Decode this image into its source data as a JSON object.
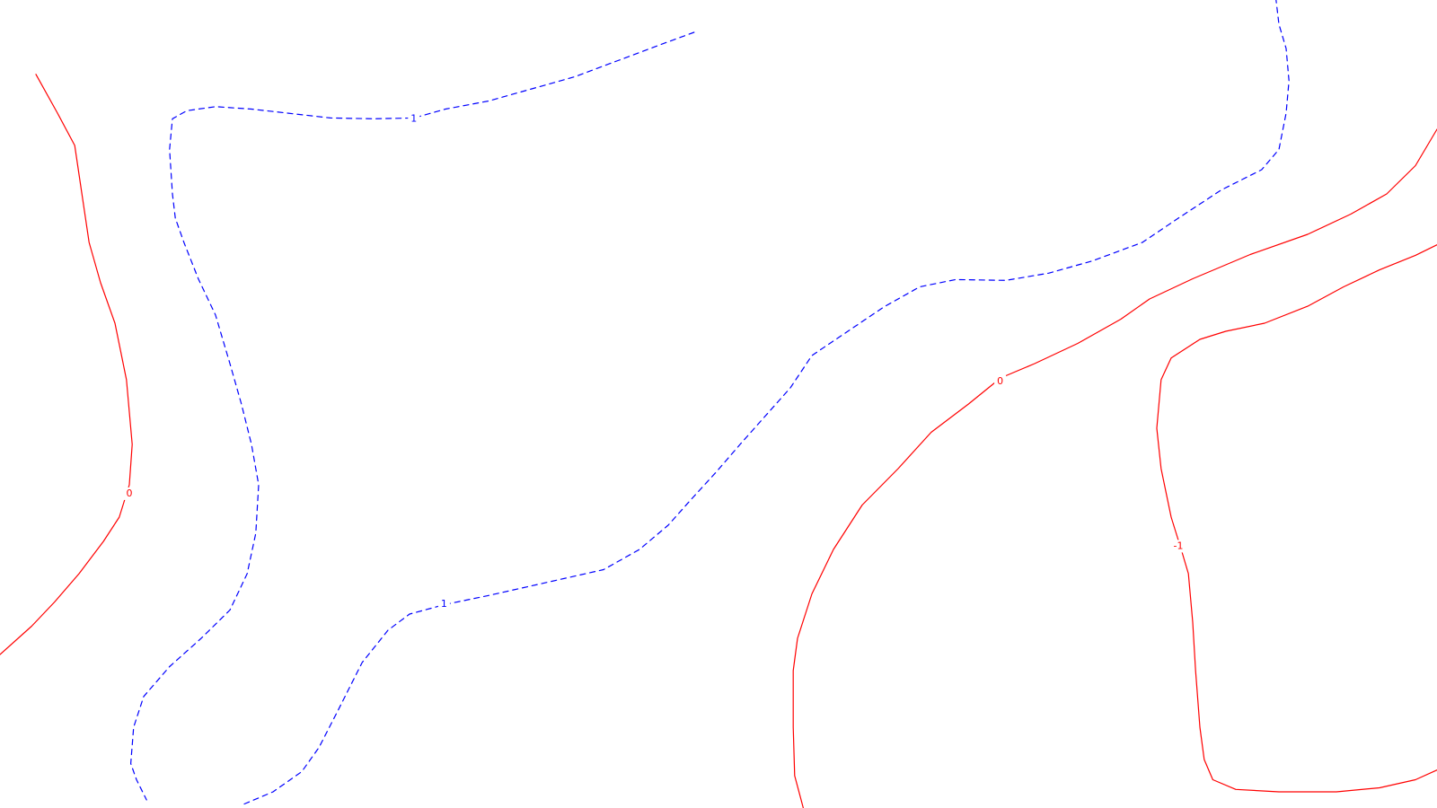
{
  "chart_data": {
    "type": "contour",
    "title": "",
    "xlabel": "",
    "ylabel": "",
    "grid": false,
    "series": [
      {
        "label": "0",
        "color": "#ff0000",
        "style": "solid",
        "points": [
          [
            0.025,
            0.092
          ],
          [
            0.04,
            0.14
          ],
          [
            0.052,
            0.18
          ],
          [
            0.062,
            0.3
          ],
          [
            0.07,
            0.35
          ],
          [
            0.08,
            0.4
          ],
          [
            0.088,
            0.47
          ],
          [
            0.092,
            0.55
          ],
          [
            0.09,
            0.6
          ],
          [
            0.083,
            0.64
          ],
          [
            0.072,
            0.67
          ],
          [
            0.055,
            0.71
          ],
          [
            0.038,
            0.745
          ],
          [
            0.022,
            0.775
          ],
          [
            0.0,
            0.81
          ]
        ]
      },
      {
        "label": "0",
        "color": "#ff0000",
        "style": "solid",
        "points": [
          [
            0.559,
            1.0
          ],
          [
            0.553,
            0.96
          ],
          [
            0.552,
            0.9
          ],
          [
            0.552,
            0.83
          ],
          [
            0.555,
            0.79
          ],
          [
            0.565,
            0.735
          ],
          [
            0.58,
            0.68
          ],
          [
            0.6,
            0.625
          ],
          [
            0.625,
            0.58
          ],
          [
            0.648,
            0.535
          ],
          [
            0.674,
            0.5
          ],
          [
            0.692,
            0.474
          ],
          [
            0.7,
            0.465
          ],
          [
            0.72,
            0.45
          ],
          [
            0.75,
            0.425
          ],
          [
            0.78,
            0.395
          ],
          [
            0.8,
            0.37
          ],
          [
            0.83,
            0.345
          ],
          [
            0.87,
            0.315
          ],
          [
            0.91,
            0.29
          ],
          [
            0.94,
            0.265
          ],
          [
            0.965,
            0.24
          ],
          [
            0.985,
            0.205
          ],
          [
            1.0,
            0.16
          ]
        ]
      },
      {
        "label": "-1",
        "color": "#ff0000",
        "style": "solid",
        "points": [
          [
            1.0,
            0.303
          ],
          [
            0.985,
            0.316
          ],
          [
            0.96,
            0.334
          ],
          [
            0.935,
            0.355
          ],
          [
            0.91,
            0.379
          ],
          [
            0.88,
            0.4
          ],
          [
            0.853,
            0.41
          ],
          [
            0.835,
            0.42
          ],
          [
            0.815,
            0.443
          ],
          [
            0.808,
            0.47
          ],
          [
            0.805,
            0.53
          ],
          [
            0.808,
            0.58
          ],
          [
            0.815,
            0.64
          ],
          [
            0.822,
            0.68
          ],
          [
            0.827,
            0.71
          ],
          [
            0.83,
            0.77
          ],
          [
            0.832,
            0.83
          ],
          [
            0.835,
            0.9
          ],
          [
            0.838,
            0.94
          ],
          [
            0.844,
            0.965
          ],
          [
            0.86,
            0.977
          ],
          [
            0.89,
            0.98
          ],
          [
            0.93,
            0.98
          ],
          [
            0.96,
            0.975
          ],
          [
            0.985,
            0.965
          ],
          [
            1.0,
            0.953
          ]
        ]
      },
      {
        "label": "1",
        "color": "#0000ff",
        "style": "dashed",
        "points": [
          [
            0.483,
            0.04
          ],
          [
            0.46,
            0.055
          ],
          [
            0.43,
            0.075
          ],
          [
            0.4,
            0.095
          ],
          [
            0.37,
            0.11
          ],
          [
            0.34,
            0.125
          ],
          [
            0.31,
            0.135
          ],
          [
            0.288,
            0.146
          ],
          [
            0.26,
            0.147
          ],
          [
            0.23,
            0.146
          ],
          [
            0.2,
            0.14
          ],
          [
            0.175,
            0.135
          ],
          [
            0.15,
            0.132
          ],
          [
            0.13,
            0.137
          ],
          [
            0.12,
            0.147
          ],
          [
            0.118,
            0.185
          ],
          [
            0.12,
            0.24
          ],
          [
            0.122,
            0.27
          ],
          [
            0.128,
            0.3
          ],
          [
            0.138,
            0.345
          ],
          [
            0.15,
            0.39
          ],
          [
            0.16,
            0.45
          ],
          [
            0.168,
            0.5
          ],
          [
            0.175,
            0.55
          ],
          [
            0.18,
            0.6
          ],
          [
            0.178,
            0.66
          ],
          [
            0.172,
            0.71
          ],
          [
            0.16,
            0.755
          ],
          [
            0.14,
            0.79
          ],
          [
            0.118,
            0.825
          ],
          [
            0.1,
            0.862
          ],
          [
            0.093,
            0.9
          ],
          [
            0.091,
            0.945
          ],
          [
            0.095,
            0.965
          ],
          [
            0.102,
            0.99
          ]
        ]
      },
      {
        "label": "1",
        "color": "#0000ff",
        "style": "dashed",
        "points": [
          [
            0.17,
            0.995
          ],
          [
            0.19,
            0.98
          ],
          [
            0.21,
            0.955
          ],
          [
            0.222,
            0.925
          ],
          [
            0.235,
            0.88
          ],
          [
            0.252,
            0.82
          ],
          [
            0.27,
            0.78
          ],
          [
            0.285,
            0.76
          ],
          [
            0.31,
            0.748
          ],
          [
            0.34,
            0.737
          ],
          [
            0.37,
            0.725
          ],
          [
            0.4,
            0.713
          ],
          [
            0.42,
            0.705
          ],
          [
            0.445,
            0.68
          ],
          [
            0.465,
            0.65
          ],
          [
            0.48,
            0.62
          ],
          [
            0.498,
            0.585
          ],
          [
            0.515,
            0.55
          ],
          [
            0.535,
            0.51
          ],
          [
            0.55,
            0.48
          ],
          [
            0.565,
            0.44
          ],
          [
            0.59,
            0.41
          ],
          [
            0.615,
            0.38
          ],
          [
            0.64,
            0.355
          ],
          [
            0.665,
            0.346
          ],
          [
            0.7,
            0.347
          ],
          [
            0.73,
            0.338
          ],
          [
            0.76,
            0.323
          ],
          [
            0.795,
            0.3
          ],
          [
            0.82,
            0.27
          ],
          [
            0.85,
            0.235
          ],
          [
            0.878,
            0.21
          ],
          [
            0.89,
            0.185
          ],
          [
            0.895,
            0.14
          ],
          [
            0.897,
            0.1
          ],
          [
            0.895,
            0.06
          ],
          [
            0.89,
            0.03
          ],
          [
            0.888,
            0.0
          ]
        ]
      }
    ],
    "labels": [
      {
        "text": "0",
        "x": 0.09,
        "y": 0.611,
        "color": "#ff0000"
      },
      {
        "text": "0",
        "x": 0.696,
        "y": 0.472,
        "color": "#ff0000"
      },
      {
        "text": "-1",
        "x": 0.82,
        "y": 0.676,
        "color": "#ff0000"
      },
      {
        "text": "1",
        "x": 0.288,
        "y": 0.147,
        "color": "#0000ff"
      },
      {
        "text": "1",
        "x": 0.309,
        "y": 0.748,
        "color": "#0000ff"
      }
    ]
  }
}
